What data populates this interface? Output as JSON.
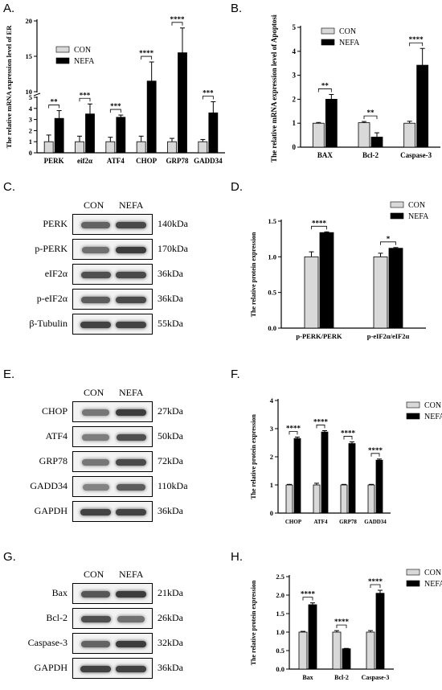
{
  "panels": {
    "A": "A.",
    "B": "B.",
    "C": "C.",
    "D": "D.",
    "E": "E.",
    "F": "F.",
    "G": "G.",
    "H": "H."
  },
  "blots": {
    "C": {
      "headers": [
        "CON",
        "NEFA"
      ],
      "rows": [
        {
          "label": "PERK",
          "kda": "140kDa",
          "bands": [
            0.55,
            0.75
          ]
        },
        {
          "label": "p-PERK",
          "kda": "170kDa",
          "bands": [
            0.45,
            0.85
          ]
        },
        {
          "label": "eIF2α",
          "kda": "36kDa",
          "bands": [
            0.7,
            0.75
          ]
        },
        {
          "label": "p-eIF2α",
          "kda": "36kDa",
          "bands": [
            0.6,
            0.75
          ]
        },
        {
          "label": "β-Tubulin",
          "kda": "55kDa",
          "bands": [
            0.8,
            0.8
          ]
        }
      ]
    },
    "E": {
      "headers": [
        "CON",
        "NEFA"
      ],
      "rows": [
        {
          "label": "CHOP",
          "kda": "27kDa",
          "bands": [
            0.4,
            0.85
          ]
        },
        {
          "label": "ATF4",
          "kda": "50kDa",
          "bands": [
            0.35,
            0.7
          ]
        },
        {
          "label": "GRP78",
          "kda": "72kDa",
          "bands": [
            0.4,
            0.75
          ]
        },
        {
          "label": "GADD34",
          "kda": "110kDa",
          "bands": [
            0.3,
            0.6
          ]
        },
        {
          "label": "GAPDH",
          "kda": "36kDa",
          "bands": [
            0.8,
            0.8
          ]
        }
      ]
    },
    "G": {
      "headers": [
        "CON",
        "NEFA"
      ],
      "rows": [
        {
          "label": "Bax",
          "kda": "21kDa",
          "bands": [
            0.65,
            0.85
          ]
        },
        {
          "label": "Bcl-2",
          "kda": "26kDa",
          "bands": [
            0.7,
            0.45
          ]
        },
        {
          "label": "Caspase-3",
          "kda": "32kDa",
          "bands": [
            0.55,
            0.85
          ]
        },
        {
          "label": "GAPDH",
          "kda": "36kDa",
          "bands": [
            0.8,
            0.8
          ]
        }
      ]
    }
  },
  "chart_data": [
    {
      "id": "A",
      "type": "bar",
      "ylabel": "The relative mRNA expression level of ER",
      "categories": [
        "PERK",
        "eif2α",
        "ATF4",
        "CHOP",
        "GRP78",
        "GADD34"
      ],
      "yaxis_break": [
        5,
        10
      ],
      "yticks_lower": [
        "0",
        "1",
        "2",
        "3",
        "4",
        "5"
      ],
      "yticks_upper": [
        "10",
        "15",
        "20"
      ],
      "series": [
        {
          "name": "CON",
          "color": "#d9d9d9",
          "values": [
            1.0,
            1.0,
            1.0,
            1.0,
            1.0,
            1.0
          ],
          "errors": [
            0.6,
            0.5,
            0.4,
            0.5,
            0.3,
            0.2
          ]
        },
        {
          "name": "NEFA",
          "color": "#000000",
          "values": [
            3.1,
            3.5,
            3.2,
            11.5,
            15.5,
            3.6
          ],
          "errors": [
            0.7,
            0.9,
            0.2,
            2.7,
            3.5,
            1.0
          ]
        }
      ],
      "significance": [
        "**",
        "***",
        "***",
        "****",
        "****",
        "***"
      ],
      "legend": "top-right"
    },
    {
      "id": "B",
      "type": "bar",
      "ylabel": "The relative mRNA expression level of Apoptosis",
      "categories": [
        "BAX",
        "Bcl-2",
        "Caspase-3"
      ],
      "ylim": [
        0,
        5
      ],
      "yticks": [
        "0",
        "1",
        "2",
        "3",
        "4",
        "5"
      ],
      "series": [
        {
          "name": "CON",
          "color": "#d9d9d9",
          "values": [
            1.0,
            1.02,
            1.0
          ],
          "errors": [
            0.03,
            0.05,
            0.08
          ]
        },
        {
          "name": "NEFA",
          "color": "#000000",
          "values": [
            2.0,
            0.42,
            3.42
          ],
          "errors": [
            0.2,
            0.18,
            0.7
          ]
        }
      ],
      "significance": [
        "**",
        "**",
        "****"
      ],
      "legend": "top-left"
    },
    {
      "id": "D",
      "type": "bar",
      "ylabel": "The relative protein expression",
      "categories": [
        "p-PERK/PERK",
        "p-eIF2α/eIF2α"
      ],
      "ylim": [
        0,
        1.5
      ],
      "yticks": [
        "0.0",
        "0.5",
        "1.0",
        "1.5"
      ],
      "series": [
        {
          "name": "CON",
          "color": "#d9d9d9",
          "values": [
            1.0,
            1.0
          ],
          "errors": [
            0.07,
            0.05
          ]
        },
        {
          "name": "NEFA",
          "color": "#000000",
          "values": [
            1.34,
            1.12
          ],
          "errors": [
            0.01,
            0.01
          ]
        }
      ],
      "significance": [
        "****",
        "*"
      ],
      "legend": "top-right"
    },
    {
      "id": "F",
      "type": "bar",
      "ylabel": "The relative protein expression",
      "categories": [
        "CHOP",
        "ATF4",
        "GRP78",
        "GADD34"
      ],
      "ylim": [
        0,
        4
      ],
      "yticks": [
        "0",
        "1",
        "2",
        "3",
        "4"
      ],
      "series": [
        {
          "name": "CON",
          "color": "#d9d9d9",
          "values": [
            1.0,
            1.0,
            1.0,
            1.0
          ],
          "errors": [
            0.02,
            0.06,
            0.02,
            0.02
          ]
        },
        {
          "name": "NEFA",
          "color": "#000000",
          "values": [
            2.65,
            2.88,
            2.47,
            1.88
          ],
          "errors": [
            0.05,
            0.05,
            0.06,
            0.04
          ]
        }
      ],
      "significance": [
        "****",
        "****",
        "****",
        "****"
      ],
      "legend": "top-right"
    },
    {
      "id": "H",
      "type": "bar",
      "ylabel": "The relative protein expression",
      "categories": [
        "Bax",
        "Bcl-2",
        "Caspase-3"
      ],
      "ylim": [
        0,
        2.5
      ],
      "yticks": [
        "0.0",
        "0.5",
        "1.0",
        "1.5",
        "2.0",
        "2.5"
      ],
      "series": [
        {
          "name": "CON",
          "color": "#d9d9d9",
          "values": [
            1.0,
            1.0,
            1.0
          ],
          "errors": [
            0.02,
            0.04,
            0.04
          ]
        },
        {
          "name": "NEFA",
          "color": "#000000",
          "values": [
            1.74,
            0.55,
            2.05
          ],
          "errors": [
            0.05,
            0.01,
            0.08
          ]
        }
      ],
      "significance": [
        "****",
        "****",
        "****"
      ],
      "legend": "top-right"
    }
  ]
}
